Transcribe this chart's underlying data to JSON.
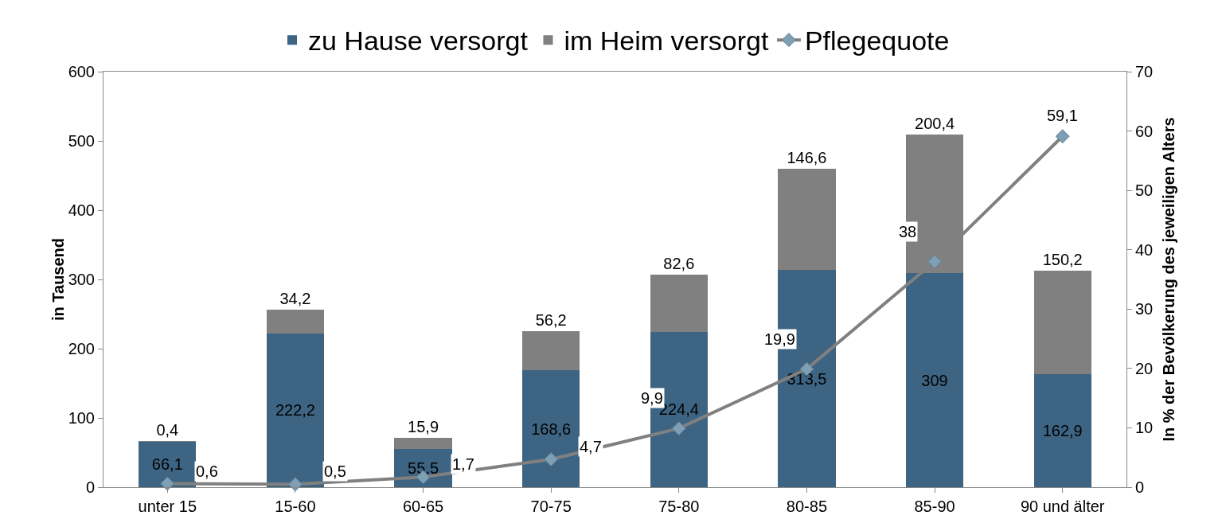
{
  "chart_data": {
    "type": "bar",
    "stacked": true,
    "categories": [
      "unter 15",
      "15-60",
      "60-65",
      "70-75",
      "75-80",
      "80-85",
      "85-90",
      "90 und älter"
    ],
    "series": [
      {
        "name": "zu Hause versorgt",
        "color": "#3d6482",
        "values": [
          66.1,
          222.2,
          55.5,
          168.6,
          224.4,
          313.5,
          309,
          162.9
        ],
        "value_labels": [
          "66,1",
          "222,2",
          "55,5",
          "168,6",
          "224,4",
          "313,5",
          "309",
          "162,9"
        ]
      },
      {
        "name": "im Heim versorgt",
        "color": "#808080",
        "values": [
          0.4,
          34.2,
          15.9,
          56.2,
          82.6,
          146.6,
          200.4,
          150.2
        ],
        "value_labels": [
          "0,4",
          "34,2",
          "15,9",
          "56,2",
          "82,6",
          "146,6",
          "200,4",
          "150,2"
        ]
      },
      {
        "name": "Pflegequote",
        "type": "line",
        "axis": "y2",
        "color": "#808080",
        "values": [
          0.6,
          0.5,
          1.7,
          4.7,
          9.9,
          19.9,
          38,
          59.1
        ],
        "value_labels": [
          "0,6",
          "0,5",
          "1,7",
          "4,7",
          "9,9",
          "19,9",
          "38",
          "59,1"
        ]
      }
    ],
    "ylabel": "in Tausend",
    "y2label": "In % der Bevölkerung des jeweiligen Alters",
    "ylim": [
      0,
      600
    ],
    "yticks": [
      0,
      100,
      200,
      300,
      400,
      500,
      600
    ],
    "y2lim": [
      0,
      70
    ],
    "y2ticks": [
      0,
      10,
      20,
      30,
      40,
      50,
      60,
      70
    ],
    "grid": false,
    "legend": "top",
    "marker": "diamond",
    "line_style": "solid"
  }
}
